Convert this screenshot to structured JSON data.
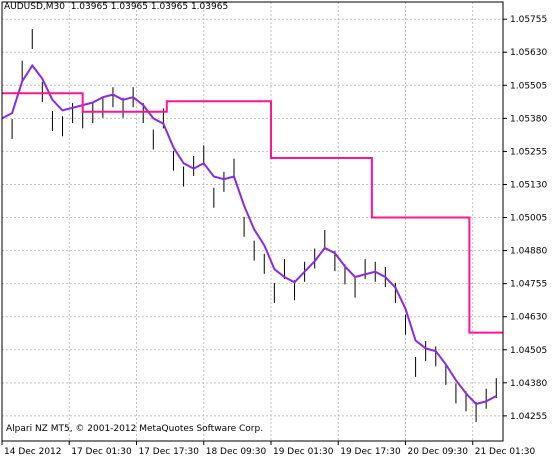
{
  "header": {
    "symbol_timeframe": "AUDUSD,M30",
    "ohlc": "1.03965 1.03965 1.03965 1.03965"
  },
  "footer": {
    "copyright": "Alpari NZ MT5, © 2001-2012 MetaQuotes Software Corp."
  },
  "colors": {
    "background": "#ffffff",
    "grid": "#c0c0c0",
    "bars": "#000000",
    "step_indicator": "#ff1493",
    "moving_average": "#8a2be2"
  },
  "chart_data": {
    "type": "line",
    "symbol": "AUDUSD",
    "timeframe": "M30",
    "ylim": [
      1.0416,
      1.0582
    ],
    "y_ticks": [
      "1.05755",
      "1.05630",
      "1.05505",
      "1.05380",
      "1.05255",
      "1.05130",
      "1.05005",
      "1.04880",
      "1.04755",
      "1.04630",
      "1.04505",
      "1.04380",
      "1.04255"
    ],
    "x_ticks": [
      "14 Dec 2012",
      "17 Dec 01:30",
      "17 Dec 17:30",
      "18 Dec 09:30",
      "19 Dec 01:30",
      "19 Dec 17:30",
      "20 Dec 09:30",
      "21 Dec 01:30"
    ],
    "grid": true,
    "series": [
      {
        "style": "bars",
        "x": [
          0,
          0.15,
          0.3,
          0.45,
          0.6,
          0.75,
          0.9,
          1.05,
          1.2,
          1.35,
          1.5,
          1.65,
          1.8,
          1.95,
          2.1,
          2.25,
          2.4,
          2.55,
          2.7,
          2.85,
          3.0,
          3.15,
          3.3,
          3.45,
          3.6,
          3.75,
          3.9,
          4.05,
          4.2,
          4.35,
          4.5,
          4.65,
          4.8,
          4.95,
          5.1,
          5.25,
          5.4,
          5.55,
          5.7,
          5.85,
          6.0,
          6.15,
          6.3,
          6.45,
          6.6,
          6.75,
          6.9,
          7.05,
          7.2,
          7.35
        ],
        "y": [
          1.0531,
          1.0534,
          1.0556,
          1.0568,
          1.0548,
          1.0537,
          1.0535,
          1.054,
          1.0538,
          1.054,
          1.0542,
          1.0546,
          1.0542,
          1.0546,
          1.054,
          1.053,
          1.0538,
          1.0522,
          1.0516,
          1.052,
          1.0524,
          1.0508,
          1.0514,
          1.0519,
          1.0497,
          1.0488,
          1.0483,
          1.0472,
          1.0481,
          1.0473,
          1.048,
          1.0485,
          1.0492,
          1.0484,
          1.0479,
          1.0474,
          1.0481,
          1.048,
          1.0478,
          1.0472,
          1.046,
          1.0444,
          1.045,
          1.0448,
          1.0441,
          1.0434,
          1.0431,
          1.0427,
          1.0432,
          1.0436
        ]
      },
      {
        "style": "line",
        "x": [
          0,
          0.15,
          0.3,
          0.45,
          0.6,
          0.75,
          0.9,
          1.05,
          1.2,
          1.35,
          1.5,
          1.65,
          1.8,
          1.95,
          2.1,
          2.25,
          2.4,
          2.55,
          2.7,
          2.85,
          3.0,
          3.15,
          3.3,
          3.45,
          3.6,
          3.75,
          3.9,
          4.05,
          4.2,
          4.35,
          4.5,
          4.65,
          4.8,
          4.95,
          5.1,
          5.25,
          5.4,
          5.55,
          5.7,
          5.85,
          6.0,
          6.15,
          6.3,
          6.45,
          6.6,
          6.75,
          6.9,
          7.05,
          7.2,
          7.35
        ],
        "y": [
          1.0538,
          1.054,
          1.0552,
          1.0558,
          1.0553,
          1.0545,
          1.0541,
          1.0542,
          1.0543,
          1.0544,
          1.0546,
          1.0547,
          1.0545,
          1.0546,
          1.0543,
          1.0538,
          1.0536,
          1.0527,
          1.0521,
          1.0519,
          1.0521,
          1.0516,
          1.0515,
          1.0516,
          1.0505,
          1.0496,
          1.049,
          1.0481,
          1.0478,
          1.0476,
          1.048,
          1.0484,
          1.0489,
          1.0487,
          1.0482,
          1.0478,
          1.0479,
          1.048,
          1.0478,
          1.0474,
          1.0466,
          1.0454,
          1.0451,
          1.045,
          1.0445,
          1.0439,
          1.0434,
          1.043,
          1.0431,
          1.0433
        ]
      },
      {
        "style": "step",
        "x": [
          0,
          1.2,
          1.2,
          2.45,
          2.45,
          4.0,
          4.0,
          5.5,
          5.5,
          6.95,
          6.95,
          7.45
        ],
        "y": [
          1.05475,
          1.05475,
          1.05405,
          1.05405,
          1.05445,
          1.05445,
          1.0523,
          1.0523,
          1.05005,
          1.05005,
          1.0457,
          1.0457
        ]
      }
    ]
  }
}
